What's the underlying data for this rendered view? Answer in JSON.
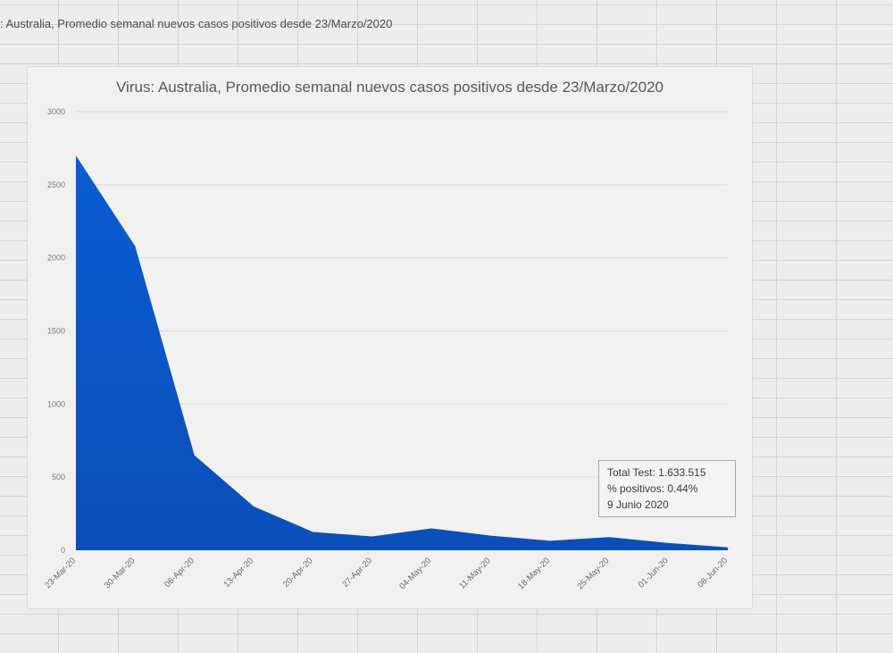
{
  "sheet": {
    "cell_title": ": Australia, Promedio semanal nuevos casos positivos desde 23/Marzo/2020"
  },
  "chart_data": {
    "type": "area",
    "title": "Virus: Australia, Promedio semanal nuevos casos positivos desde 23/Marzo/2020",
    "xlabel": "",
    "ylabel": "",
    "ylim": [
      0,
      3000
    ],
    "yticks": [
      "0",
      "500",
      "1000",
      "1500",
      "2000",
      "2500",
      "3000"
    ],
    "grid": true,
    "legend": "none",
    "color": "#0a5fd0",
    "categories": [
      "23-Mar-20",
      "30-Mar-20",
      "06-Apr-20",
      "13-Apr-20",
      "20-Apr-20",
      "27-Apr-20",
      "04-May-20",
      "11-May-20",
      "18-May-20",
      "25-May-20",
      "01-Jun-20",
      "08-Jun-20"
    ],
    "values": [
      2700,
      2080,
      650,
      300,
      125,
      95,
      150,
      100,
      65,
      90,
      50,
      20
    ],
    "annotation": {
      "line1": "Total Test:  1.633.515",
      "line2": "% positivos: 0.44%",
      "line3": "9 Junio 2020"
    }
  }
}
